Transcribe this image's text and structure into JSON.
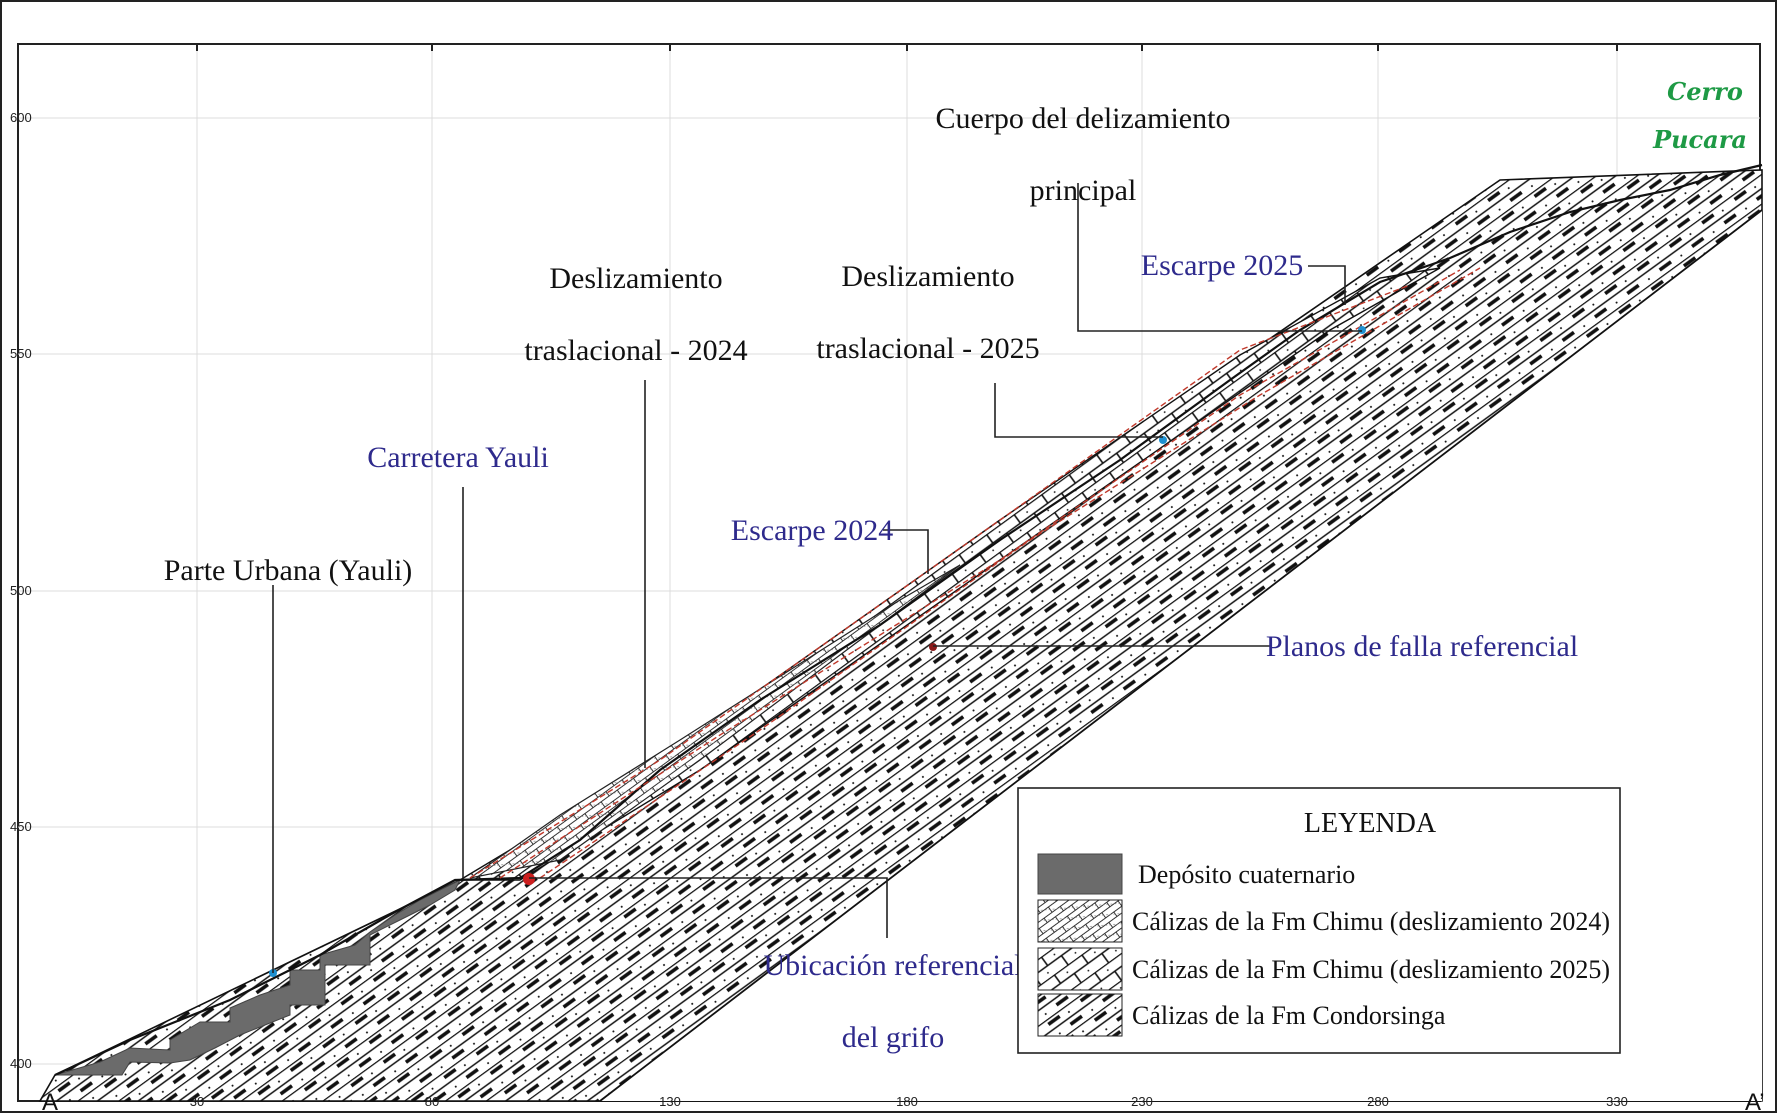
{
  "figure": {
    "x_ticks": [
      "30",
      "80",
      "130",
      "180",
      "230",
      "280",
      "330"
    ],
    "y_ticks": [
      "600",
      "550",
      "500",
      "450",
      "400"
    ],
    "end_left": "A",
    "end_right": "A’",
    "peak_label_line1": "Cerro",
    "peak_label_line2": "Pucara"
  },
  "annotations": {
    "cuerpo_line1": "Cuerpo del delizamiento",
    "cuerpo_line2": "principal",
    "escarpe_2025": "Escarpe 2025",
    "desl_2024_line1": "Deslizamiento",
    "desl_2024_line2": "traslacional - 2024",
    "desl_2025_line1": "Deslizamiento",
    "desl_2025_line2": "traslacional - 2025",
    "carretera": "Carretera Yauli",
    "escarpe_2024": "Escarpe 2024",
    "parte_urbana": "Parte Urbana (Yauli)",
    "planos_falla": "Planos de falla referencial",
    "ubicacion_line1": "Ubicación referencial",
    "ubicacion_line2": "del grifo"
  },
  "legend": {
    "title": "LEYENDA",
    "items": [
      {
        "label": "Depósito cuaternario",
        "pattern": "solid-gray"
      },
      {
        "label": "Cálizas de la Fm Chimu (deslizamiento 2024)",
        "pattern": "fine-hatch"
      },
      {
        "label": "Cálizas de la Fm Chimu (deslizamiento 2025)",
        "pattern": "brick-hatch"
      },
      {
        "label": "Cálizas de la Fm Condorsinga",
        "pattern": "bold-hatch"
      }
    ]
  },
  "colors": {
    "deposit": "#6b6b6b",
    "fault_plane": "#c0392b",
    "marker_blue": "#1e90d0",
    "marker_red": "#cc1f1f",
    "annotation_blue": "#2e2a8c",
    "peak_green": "#1e9a45"
  }
}
